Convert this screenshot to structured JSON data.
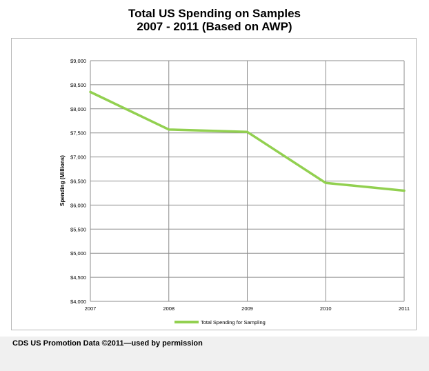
{
  "chart_data": {
    "type": "line",
    "title": "Total US Spending on Samples",
    "subtitle": "2007 - 2011 (Based on AWP)",
    "xlabel": "",
    "ylabel": "Spending (Millions)",
    "x": [
      "2007",
      "2008",
      "2009",
      "2010",
      "2011"
    ],
    "series": [
      {
        "name": "Total Spending for Sampling",
        "values": [
          8350,
          7570,
          7520,
          6460,
          6300
        ]
      }
    ],
    "ylim": [
      4000,
      9000
    ],
    "yticks": [
      "$4,000",
      "$4,500",
      "$5,000",
      "$5,500",
      "$6,000",
      "$6,500",
      "$7,000",
      "$7,500",
      "$8,000",
      "$8,500",
      "$9,000"
    ],
    "ytick_values": [
      4000,
      4500,
      5000,
      5500,
      6000,
      6500,
      7000,
      7500,
      8000,
      8500,
      9000
    ],
    "grid": true,
    "legend_position": "bottom",
    "line_color": "#92d050"
  },
  "footer": {
    "text": "CDS US Promotion Data ©2011—used by permission"
  }
}
